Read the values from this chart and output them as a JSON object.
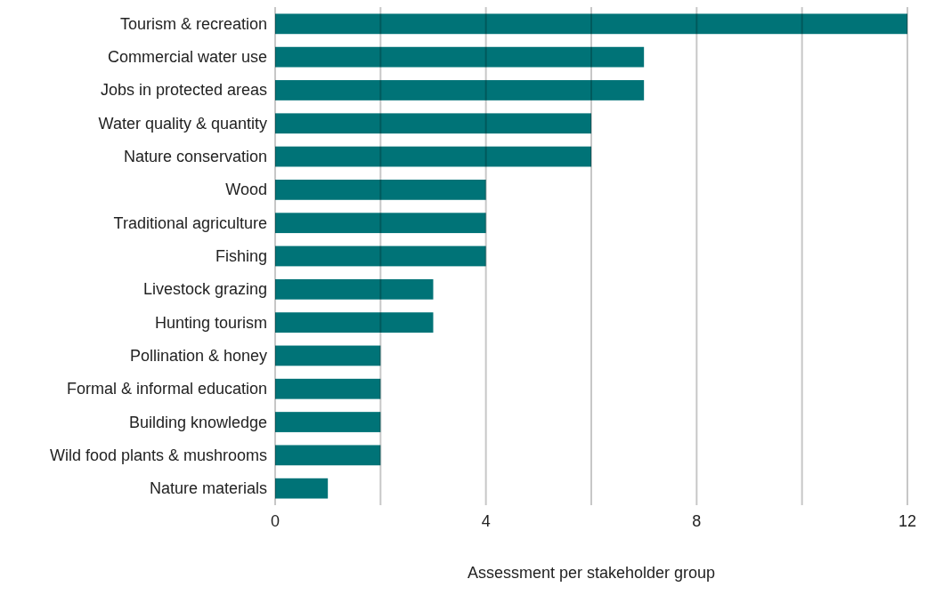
{
  "chart_data": {
    "type": "bar",
    "orientation": "horizontal",
    "xlabel": "Assessment per stakeholder group",
    "categories": [
      "Tourism & recreation",
      "Commercial water use",
      "Jobs in protected areas",
      "Water quality & quantity",
      "Nature conservation",
      "Wood",
      "Traditional agriculture",
      "Fishing",
      "Livestock grazing",
      "Hunting tourism",
      "Pollination & honey",
      "Formal & informal education",
      "Building knowledge",
      "Wild food plants & mushrooms",
      "Nature materials"
    ],
    "values": [
      12,
      7,
      7,
      6,
      6,
      4,
      4,
      4,
      3,
      3,
      2,
      2,
      2,
      2,
      1
    ],
    "color": "#007377",
    "xlim": [
      0,
      12
    ],
    "xticks": [
      0,
      {
        "value": 2,
        "label": null
      },
      4,
      {
        "value": 6,
        "label": null
      },
      8,
      {
        "value": 10,
        "label": null
      },
      12
    ],
    "grid": "x"
  }
}
